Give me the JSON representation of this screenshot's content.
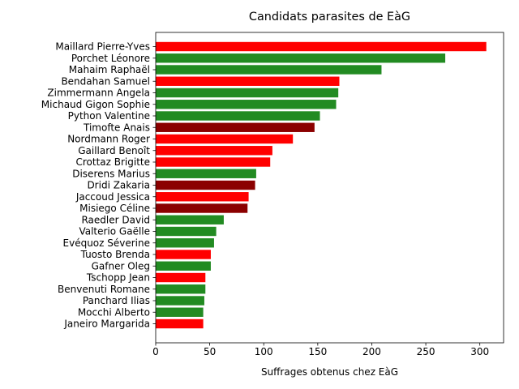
{
  "chart_data": {
    "type": "bar",
    "orientation": "horizontal",
    "title": "Candidats parasites de EàG",
    "xlabel": "Suffrages obtenus chez EàG",
    "ylabel": "",
    "xlim": [
      0,
      322
    ],
    "xticks": [
      0,
      50,
      100,
      150,
      200,
      250,
      300
    ],
    "grid": false,
    "colors": {
      "red": "#ff0000",
      "green": "#228b22",
      "darkred": "#8b0000"
    },
    "bars": [
      {
        "label": "Maillard Pierre-Yves",
        "value": 306,
        "color": "red"
      },
      {
        "label": "Porchet Léonore",
        "value": 268,
        "color": "green"
      },
      {
        "label": "Mahaim Raphaël",
        "value": 209,
        "color": "green"
      },
      {
        "label": "Bendahan Samuel",
        "value": 170,
        "color": "red"
      },
      {
        "label": "Zimmermann Angela",
        "value": 169,
        "color": "green"
      },
      {
        "label": "Michaud Gigon Sophie",
        "value": 167,
        "color": "green"
      },
      {
        "label": "Python Valentine",
        "value": 152,
        "color": "green"
      },
      {
        "label": "Timofte Anais",
        "value": 147,
        "color": "darkred"
      },
      {
        "label": "Nordmann Roger",
        "value": 127,
        "color": "red"
      },
      {
        "label": "Gaillard Benoît",
        "value": 108,
        "color": "red"
      },
      {
        "label": "Crottaz Brigitte",
        "value": 106,
        "color": "red"
      },
      {
        "label": "Diserens Marius",
        "value": 93,
        "color": "green"
      },
      {
        "label": "Dridi Zakaria",
        "value": 92,
        "color": "darkred"
      },
      {
        "label": "Jaccoud Jessica",
        "value": 86,
        "color": "red"
      },
      {
        "label": "Misiego Céline",
        "value": 85,
        "color": "darkred"
      },
      {
        "label": "Raedler David",
        "value": 63,
        "color": "green"
      },
      {
        "label": "Valterio Gaëlle",
        "value": 56,
        "color": "green"
      },
      {
        "label": "Evéquoz Séverine",
        "value": 54,
        "color": "green"
      },
      {
        "label": "Tuosto Brenda",
        "value": 51,
        "color": "red"
      },
      {
        "label": "Gafner Oleg",
        "value": 51,
        "color": "green"
      },
      {
        "label": "Tschopp Jean",
        "value": 46,
        "color": "red"
      },
      {
        "label": "Benvenuti Romane",
        "value": 46,
        "color": "green"
      },
      {
        "label": "Panchard Ilias",
        "value": 45,
        "color": "green"
      },
      {
        "label": "Mocchi Alberto",
        "value": 44,
        "color": "green"
      },
      {
        "label": "Janeiro Margarida",
        "value": 44,
        "color": "red"
      }
    ]
  }
}
